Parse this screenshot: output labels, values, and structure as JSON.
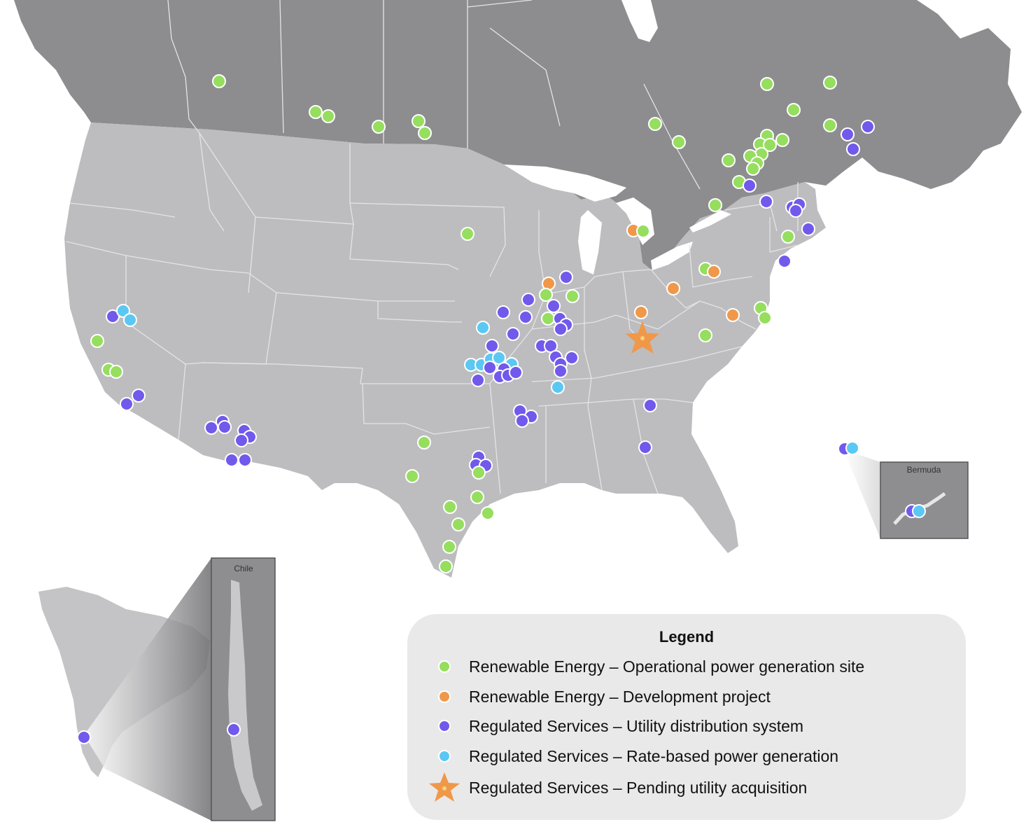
{
  "legend": {
    "title": "Legend",
    "items": [
      {
        "label": "Renewable Energy – Operational power generation site",
        "color": "#95de5e",
        "symbol": "circle"
      },
      {
        "label": "Renewable Energy – Development project",
        "color": "#f0984a",
        "symbol": "circle"
      },
      {
        "label": "Regulated Services – Utility distribution system",
        "color": "#7159ec",
        "symbol": "circle"
      },
      {
        "label": "Regulated Services – Rate-based power generation",
        "color": "#5bc8f3",
        "symbol": "circle"
      },
      {
        "label": "Regulated Services – Pending utility acquisition",
        "color": "#f0984a",
        "symbol": "star"
      }
    ]
  },
  "insets": {
    "bermuda": "Bermuda",
    "chile": "Chile"
  },
  "colors": {
    "canada_land": "#8d8d90",
    "us_land": "#bdbdbf",
    "borders": "#e4e4e6",
    "inset_frame": "#9a9a9c",
    "legend_bg": "#e9e9e9"
  }
}
